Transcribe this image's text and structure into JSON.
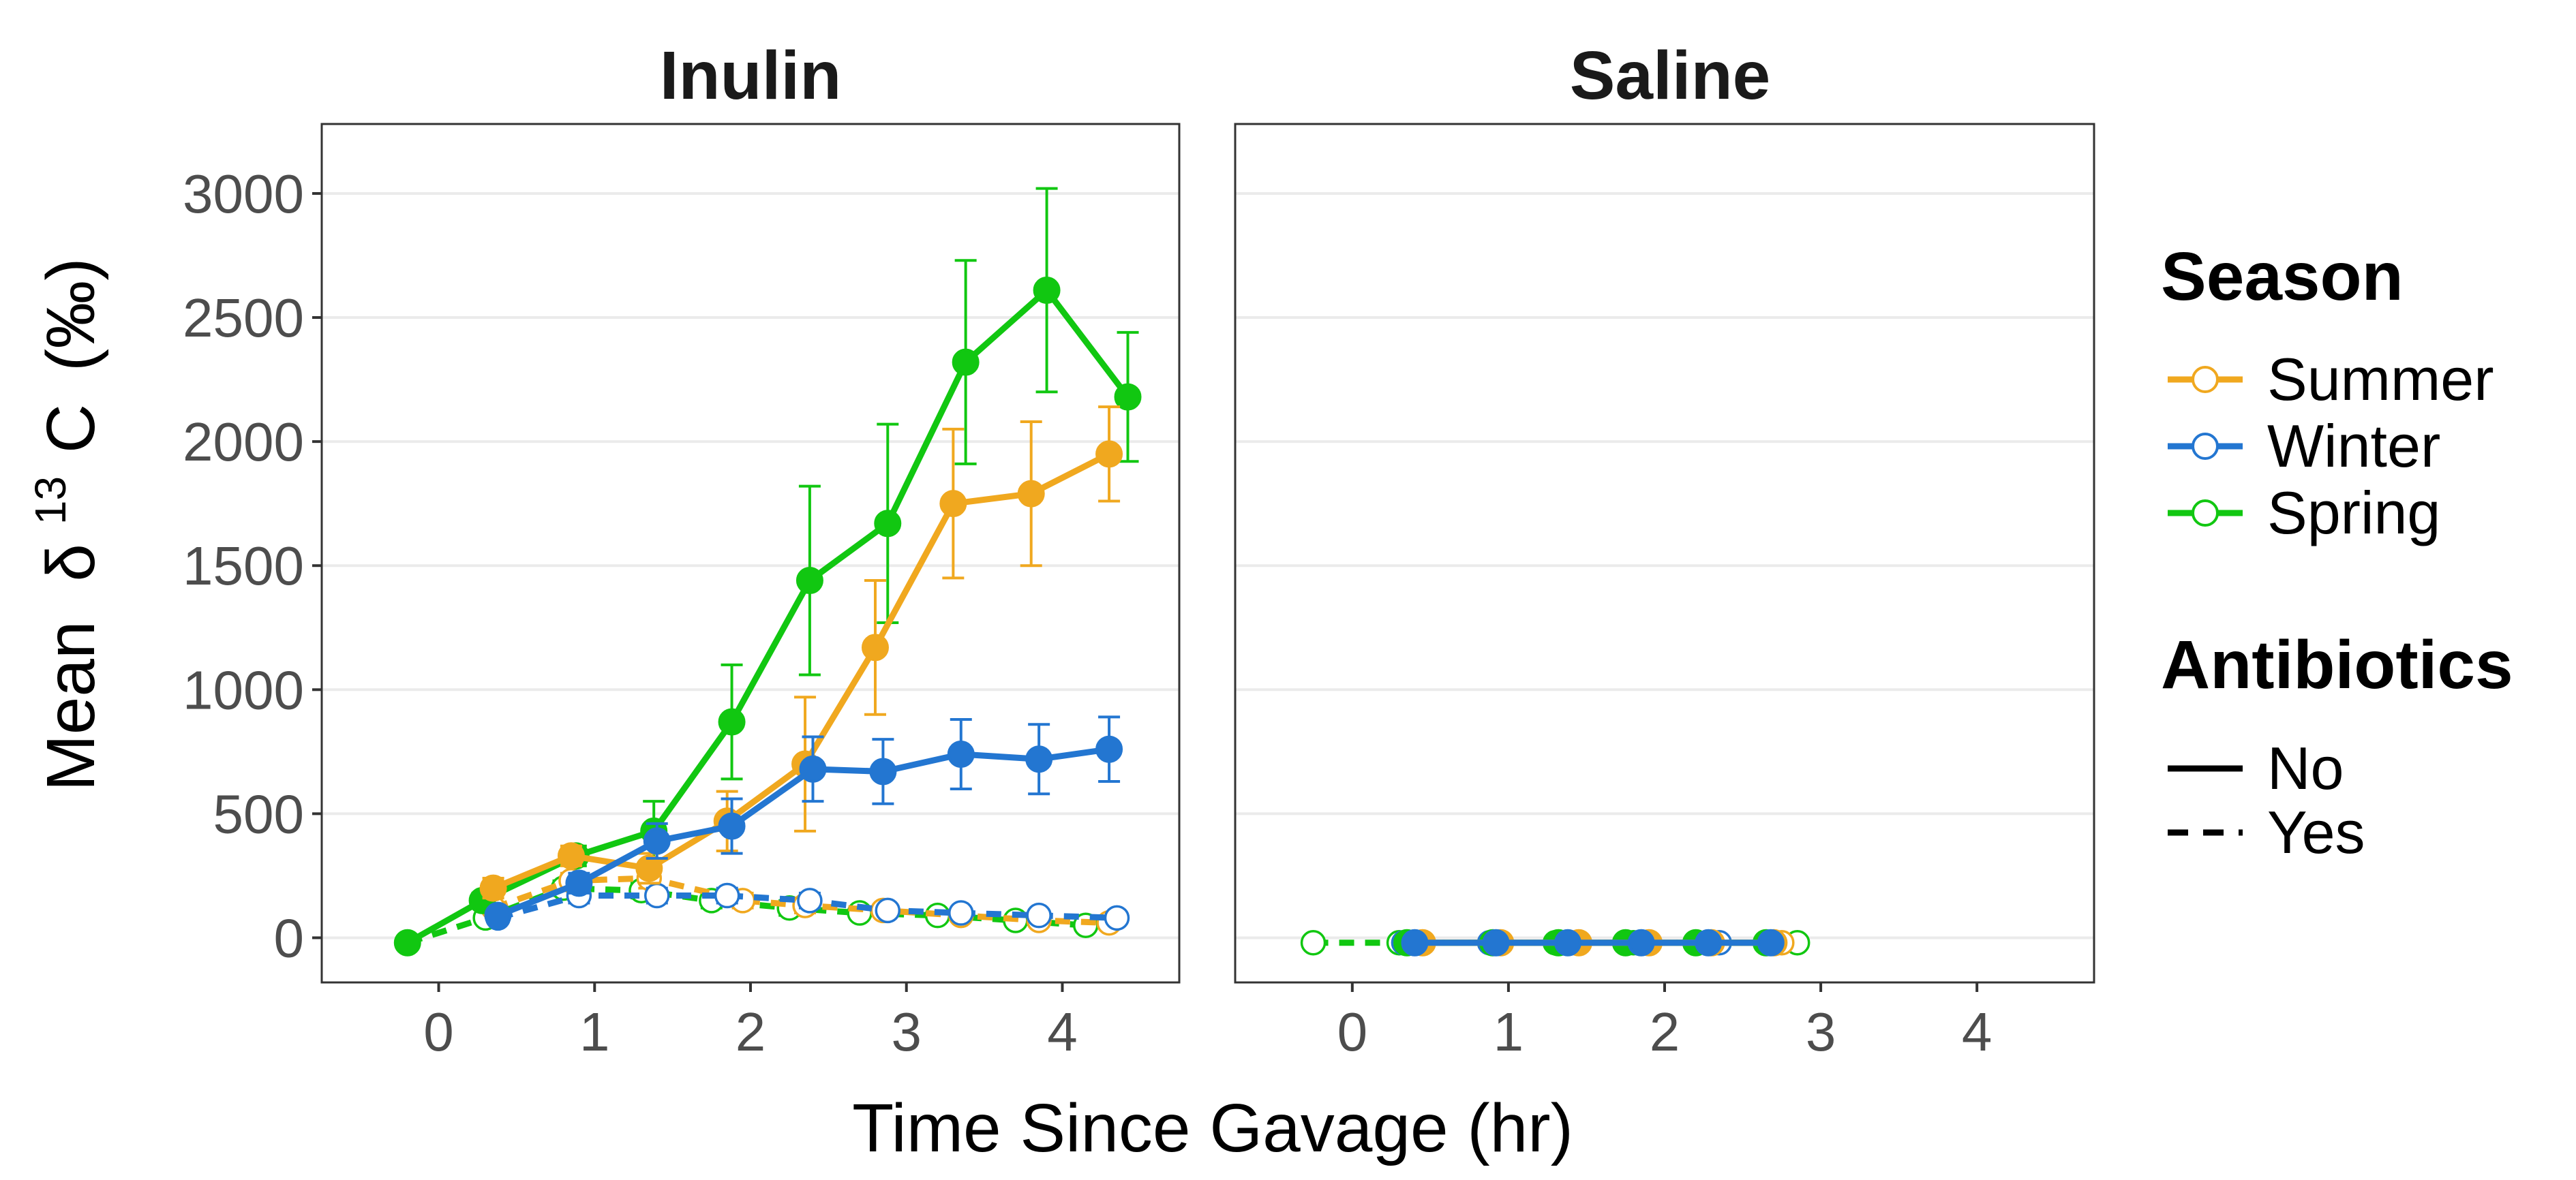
{
  "chart_data": {
    "type": "line",
    "x_label": "Time Since Gavage (hr)",
    "y_label_parts": {
      "prefix": "Mean",
      "delta": "δ",
      "superscript": "13",
      "element": "C",
      "unit": "(‰)"
    },
    "x_ticks": [
      0,
      1,
      2,
      3,
      4
    ],
    "y_ticks": [
      0,
      500,
      1000,
      1500,
      2000,
      2500,
      3000
    ],
    "x_range": [
      -0.75,
      4.75
    ],
    "y_range": [
      -180,
      3280
    ],
    "grid": "horizontal",
    "legend_position": "right",
    "legend": {
      "season_title": "Season",
      "seasons": [
        {
          "name": "Summer",
          "color": "#f0a81f"
        },
        {
          "name": "Winter",
          "color": "#2376d1"
        },
        {
          "name": "Spring",
          "color": "#11c711"
        }
      ],
      "antibiotics_title": "Antibiotics",
      "antibiotics": [
        {
          "name": "No",
          "linetype": "solid",
          "marker": "filled"
        },
        {
          "name": "Yes",
          "linetype": "dashed",
          "marker": "open"
        }
      ]
    },
    "panels": [
      {
        "title": "Inulin",
        "series": [
          {
            "season": "Spring",
            "antibiotics": "No",
            "x": [
              -0.2,
              0.28,
              0.88,
              1.38,
              1.88,
              2.38,
              2.88,
              3.38,
              3.9,
              4.42
            ],
            "y": [
              -20,
              150,
              330,
              430,
              870,
              1440,
              1670,
              2320,
              2610,
              2180
            ],
            "err": [
              0,
              30,
              40,
              120,
              230,
              380,
              400,
              410,
              410,
              260
            ]
          },
          {
            "season": "Summer",
            "antibiotics": "No",
            "x": [
              0.35,
              0.85,
              1.35,
              1.85,
              2.35,
              2.8,
              3.3,
              3.8,
              4.3
            ],
            "y": [
              200,
              330,
              280,
              470,
              700,
              1170,
              1750,
              1790,
              1950
            ],
            "err": [
              40,
              40,
              60,
              120,
              270,
              270,
              300,
              290,
              190
            ]
          },
          {
            "season": "Winter",
            "antibiotics": "No",
            "x": [
              0.38,
              0.9,
              1.4,
              1.88,
              2.4,
              2.85,
              3.35,
              3.85,
              4.3
            ],
            "y": [
              90,
              220,
              390,
              450,
              680,
              670,
              740,
              720,
              760
            ],
            "err": [
              20,
              40,
              70,
              110,
              130,
              130,
              140,
              140,
              130
            ]
          },
          {
            "season": "Spring",
            "antibiotics": "Yes",
            "x": [
              -0.2,
              0.3,
              0.8,
              1.3,
              1.75,
              2.25,
              2.7,
              3.2,
              3.7,
              4.15
            ],
            "y": [
              -20,
              80,
              200,
              190,
              150,
              120,
              100,
              90,
              70,
              50
            ],
            "err": [
              0,
              20,
              30,
              30,
              30,
              30,
              20,
              20,
              20,
              20
            ]
          },
          {
            "season": "Summer",
            "antibiotics": "Yes",
            "x": [
              0.35,
              0.85,
              1.35,
              1.95,
              2.35,
              2.85,
              3.35,
              3.85,
              4.3
            ],
            "y": [
              120,
              230,
              240,
              150,
              130,
              110,
              90,
              70,
              60
            ],
            "err": [
              20,
              30,
              40,
              30,
              30,
              20,
              20,
              20,
              20
            ]
          },
          {
            "season": "Winter",
            "antibiotics": "Yes",
            "x": [
              0.38,
              0.9,
              1.4,
              1.85,
              2.38,
              2.88,
              3.35,
              3.85,
              4.35
            ],
            "y": [
              80,
              170,
              170,
              170,
              150,
              110,
              100,
              90,
              80
            ],
            "err": [
              20,
              30,
              30,
              30,
              30,
              20,
              20,
              20,
              20
            ]
          }
        ]
      },
      {
        "title": "Saline",
        "series": [
          {
            "season": "Spring",
            "antibiotics": "No",
            "x": [
              0.35,
              0.9,
              1.32,
              1.75,
              2.2,
              2.65
            ],
            "y": [
              -20,
              -20,
              -20,
              -20,
              -20,
              -20
            ],
            "err": []
          },
          {
            "season": "Summer",
            "antibiotics": "No",
            "x": [
              0.45,
              0.95,
              1.45,
              1.9,
              2.3,
              2.7
            ],
            "y": [
              -20,
              -20,
              -20,
              -20,
              -20,
              -20
            ],
            "err": []
          },
          {
            "season": "Winter",
            "antibiotics": "No",
            "x": [
              0.4,
              0.92,
              1.38,
              1.85,
              2.28,
              2.68
            ],
            "y": [
              -20,
              -20,
              -20,
              -20,
              -20,
              -20
            ],
            "err": []
          },
          {
            "season": "Spring",
            "antibiotics": "Yes",
            "x": [
              -0.25,
              0.3,
              0.9,
              1.3,
              1.8,
              2.3,
              2.85
            ],
            "y": [
              -20,
              -20,
              -20,
              -20,
              -20,
              -20,
              -20
            ],
            "err": []
          },
          {
            "season": "Summer",
            "antibiotics": "Yes",
            "x": [
              0.45,
              0.95,
              1.4,
              1.9,
              2.3,
              2.75
            ],
            "y": [
              -20,
              -20,
              -20,
              -20,
              -20,
              -20
            ],
            "err": []
          },
          {
            "season": "Winter",
            "antibiotics": "Yes",
            "x": [
              0.33,
              0.88,
              1.35,
              1.85,
              2.35,
              2.7
            ],
            "y": [
              -20,
              -20,
              -20,
              -20,
              -20,
              -20
            ],
            "err": []
          }
        ]
      }
    ]
  }
}
